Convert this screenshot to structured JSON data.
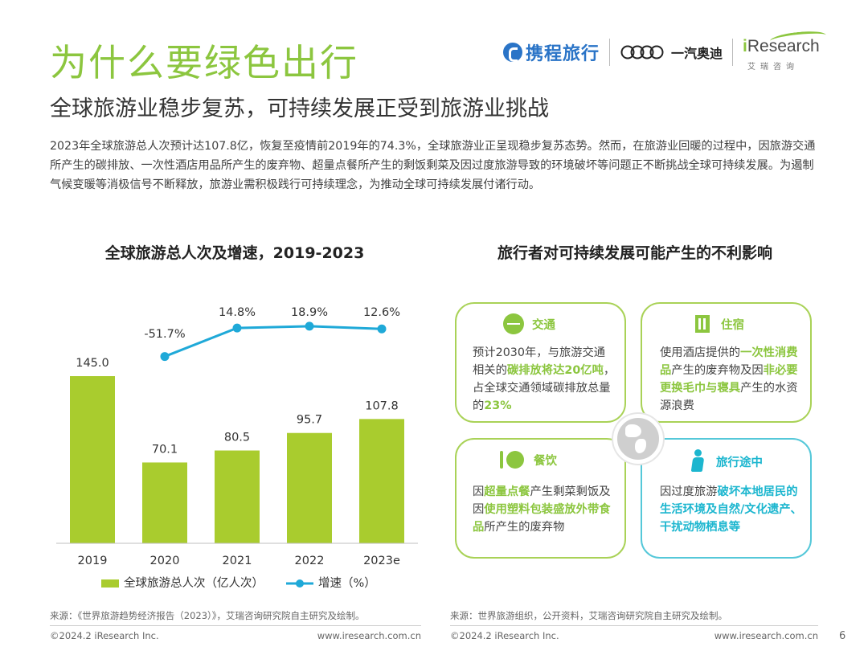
{
  "header": {
    "title": "为什么要绿色出行",
    "subtitle": "全球旅游业稳步复苏，可持续发展正受到旅游业挑战",
    "intro": "2023年全球旅游总人次预计达107.8亿，恢复至疫情前2019年的74.3%，全球旅游业正呈现稳步复苏态势。然而，在旅游业回暖的过程中，因旅游交通所产生的碳排放、一次性酒店用品所产生的废弃物、超量点餐所产生的剩饭剩菜及因过度旅游导致的环境破坏等问题正不断挑战全球可持续发展。为遏制气候变暖等消极信号不断释放，旅游业需积极践行可持续理念，为推动全球可持续发展付诸行动。"
  },
  "logos": {
    "ctrip": "携程旅行",
    "audi": "一汽奥迪",
    "iresearch_i": "i",
    "iresearch_rest": "Research",
    "iresearch_sub": "艾瑞咨询"
  },
  "chart_data": {
    "type": "bar",
    "title": "全球旅游总人次及增速，2019-2023",
    "categories": [
      "2019",
      "2020",
      "2021",
      "2022",
      "2023e"
    ],
    "series": [
      {
        "name": "全球旅游总人次（亿人次）",
        "kind": "bar",
        "color": "#a9cc2e",
        "values": [
          145.0,
          70.1,
          80.5,
          95.7,
          107.8
        ],
        "labels": [
          "145.0",
          "70.1",
          "80.5",
          "95.7",
          "107.8"
        ]
      },
      {
        "name": "增速（%）",
        "kind": "line",
        "color": "#1fa9d8",
        "values": [
          null,
          -51.7,
          14.8,
          18.9,
          12.6
        ],
        "labels": [
          "",
          "-51.7%",
          "14.8%",
          "18.9%",
          "12.6%"
        ]
      }
    ],
    "xlabel": "",
    "ylabel": "",
    "ylim": [
      0,
      145
    ]
  },
  "right_panel": {
    "title": "旅行者对可持续发展可能产生的不利影响",
    "cards": {
      "transport": {
        "title": "交通",
        "t1": "预计2030年，与旅游交通相关的",
        "h1": "碳排放将达20亿吨",
        "t2": "，占全球交通领域碳排放总量的",
        "h2": "23%"
      },
      "lodging": {
        "title": "住宿",
        "t1": "使用酒店提供的",
        "h1": "一次性消费品",
        "t2": "产生的废弃物及因",
        "h2": "非必要更换毛巾与寝具",
        "t3": "产生的水资源浪费"
      },
      "dining": {
        "title": "餐饮",
        "t1": "因",
        "h1": "超量点餐",
        "t2": "产生剩菜剩饭及因",
        "h2": "使用塑料包装盛放外带食品",
        "t3": "所产生的废弃物"
      },
      "journey": {
        "title": "旅行途中",
        "t1": "因过度旅游",
        "h1": "破坏本地居民的生活环境及自然/文化遗产、干扰动物栖息等"
      }
    }
  },
  "sources": {
    "left": "来源：《世界旅游趋势经济报告（2023）》，艾瑞咨询研究院自主研究及绘制。",
    "right": "来源：世界旅游组织，公开资料，艾瑞咨询研究院自主研究及绘制。"
  },
  "footer": {
    "copyright_left": "©2024.2 iResearch Inc.",
    "url_left": "www.iresearch.com.cn",
    "copyright_right": "©2024.2 iResearch Inc.",
    "url_right": "www.iresearch.com.cn",
    "page": "6"
  }
}
